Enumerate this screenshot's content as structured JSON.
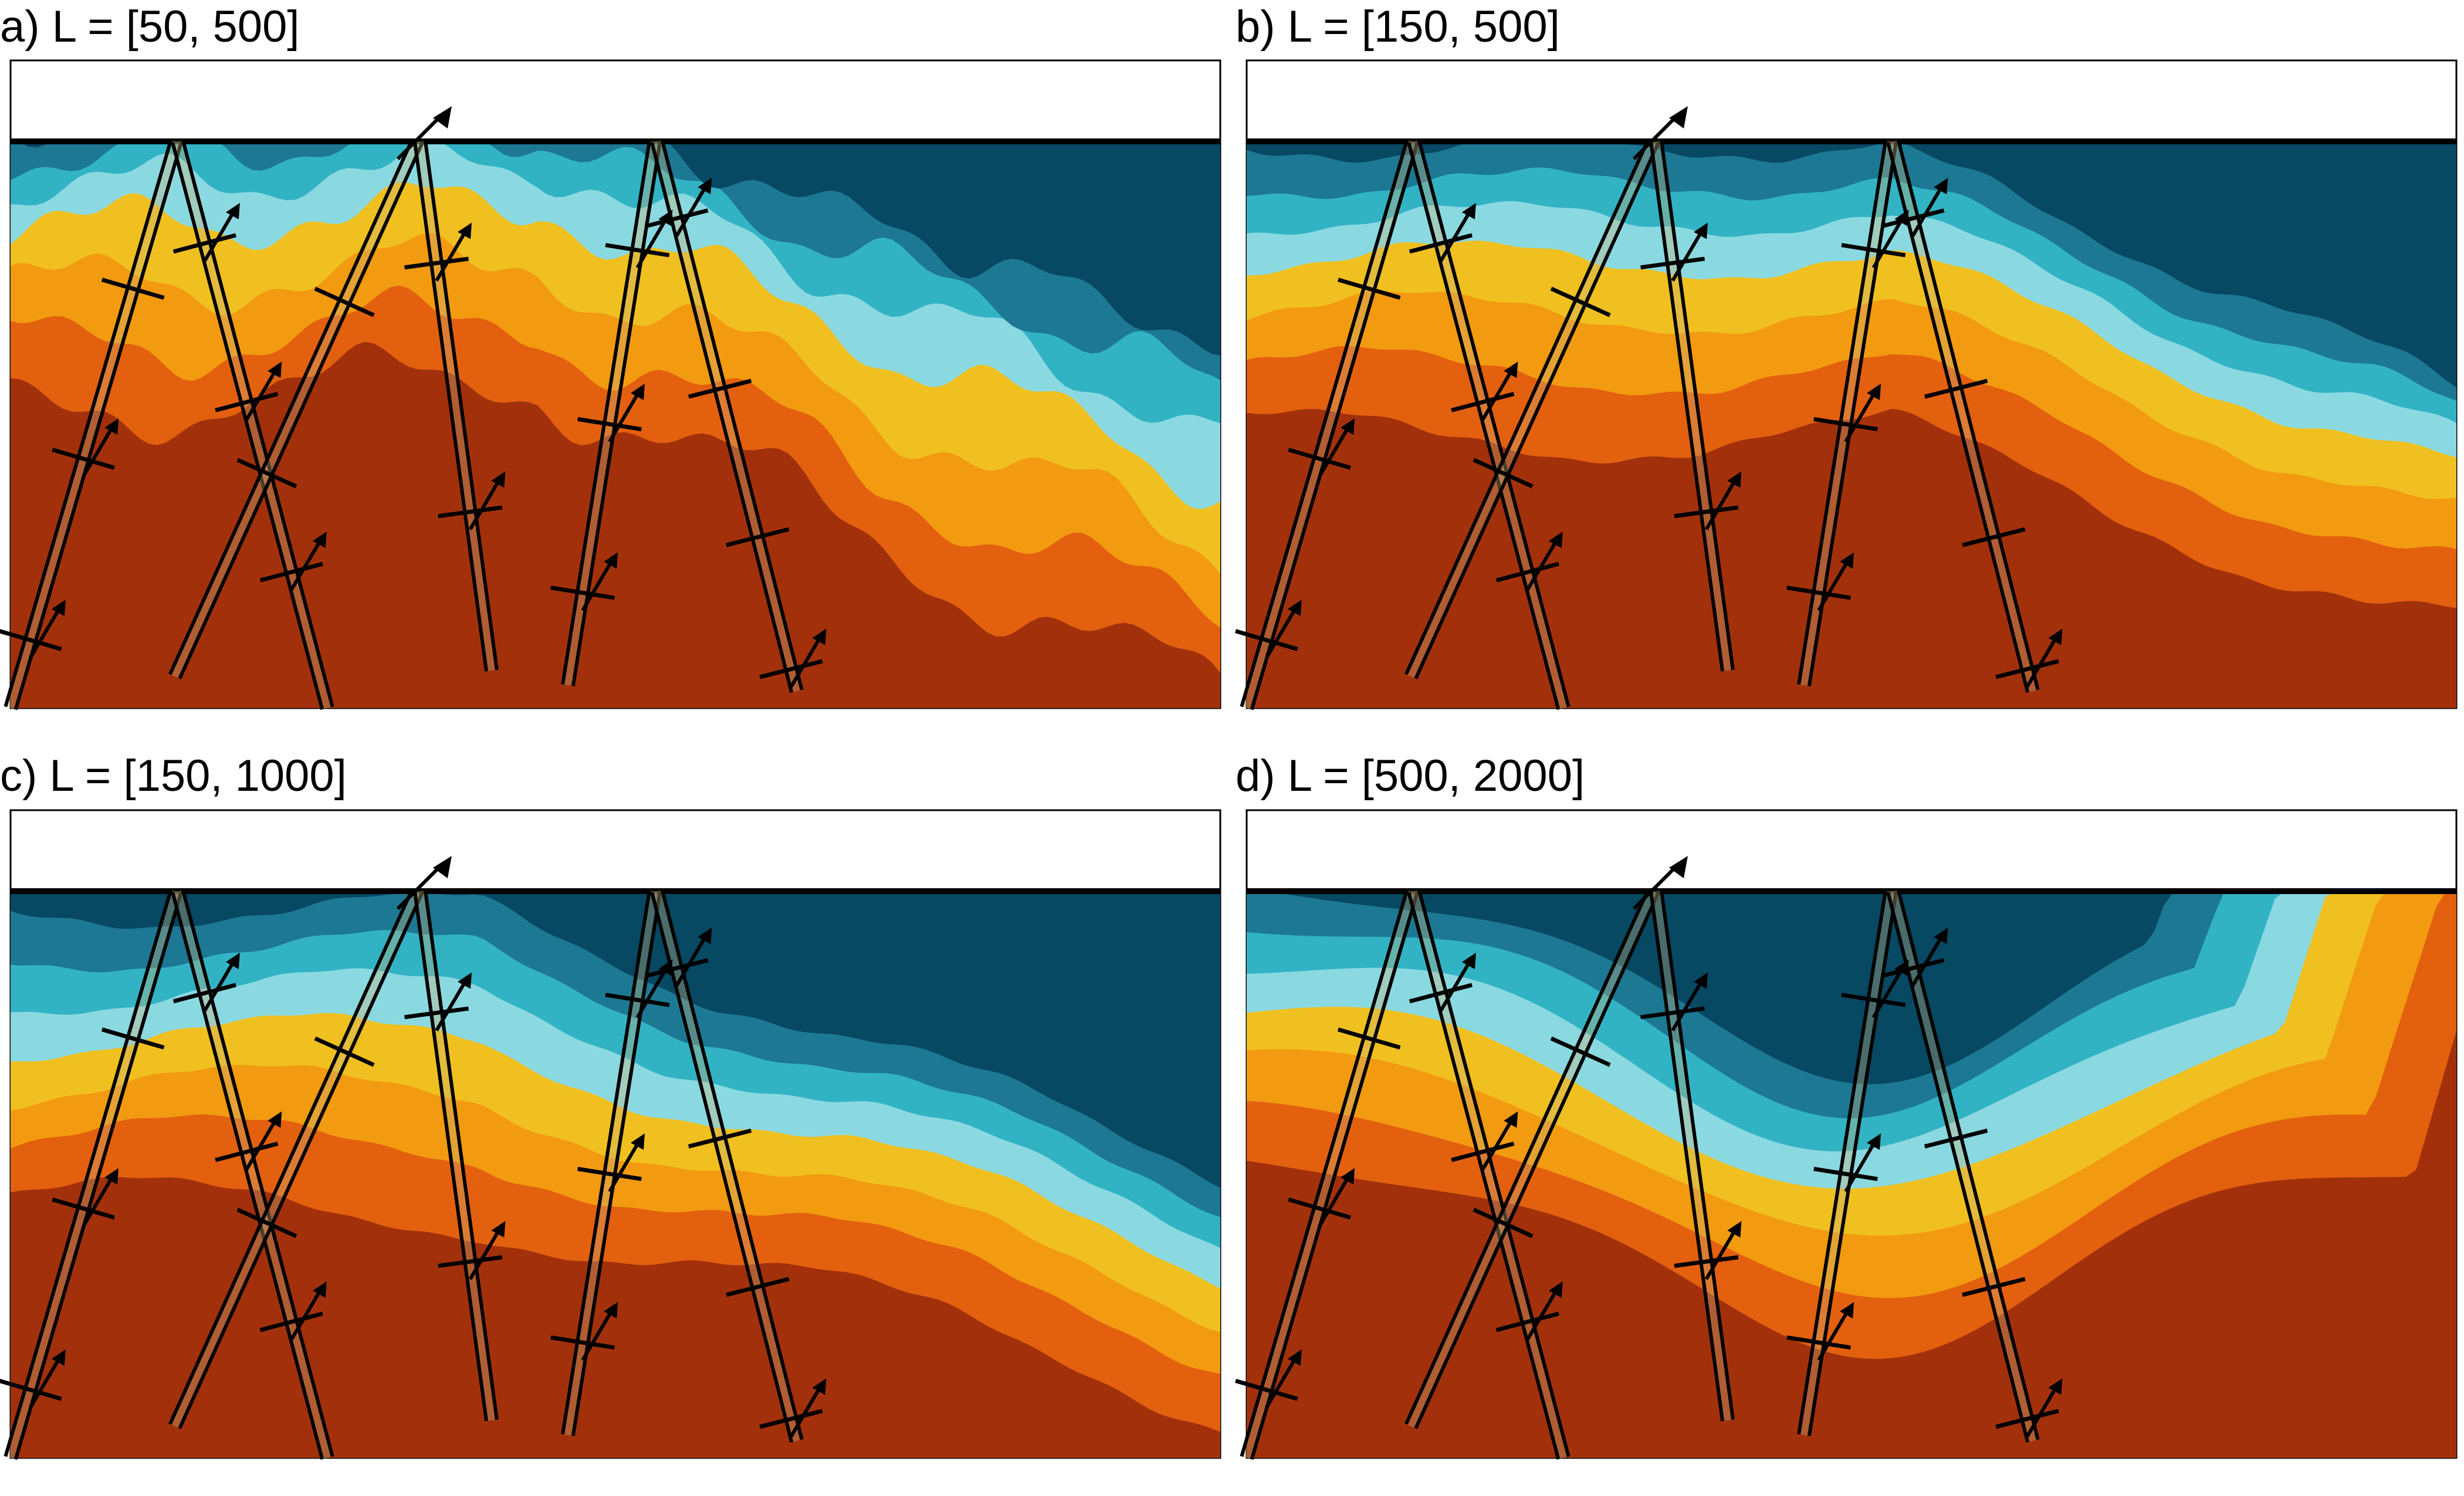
{
  "panels": [
    {
      "id": "a",
      "title": "a) L = [50, 500]"
    },
    {
      "id": "b",
      "title": "b) L = [150, 500]"
    },
    {
      "id": "c",
      "title": "c) L = [150, 1000]"
    },
    {
      "id": "d",
      "title": "d) L = [500, 2000]"
    }
  ],
  "colors": {
    "layer_darkest_blue": "#074862",
    "layer_dark_blue": "#1d7893",
    "layer_mid_blue": "#32b3c4",
    "layer_light_blue": "#8ad9e1",
    "layer_yellow": "#f0c020",
    "layer_orange": "#f29a10",
    "layer_dark_orange": "#e3600f",
    "layer_brown": "#a2310b",
    "fault_fill": "#c9b27a",
    "line": "#000000"
  }
}
